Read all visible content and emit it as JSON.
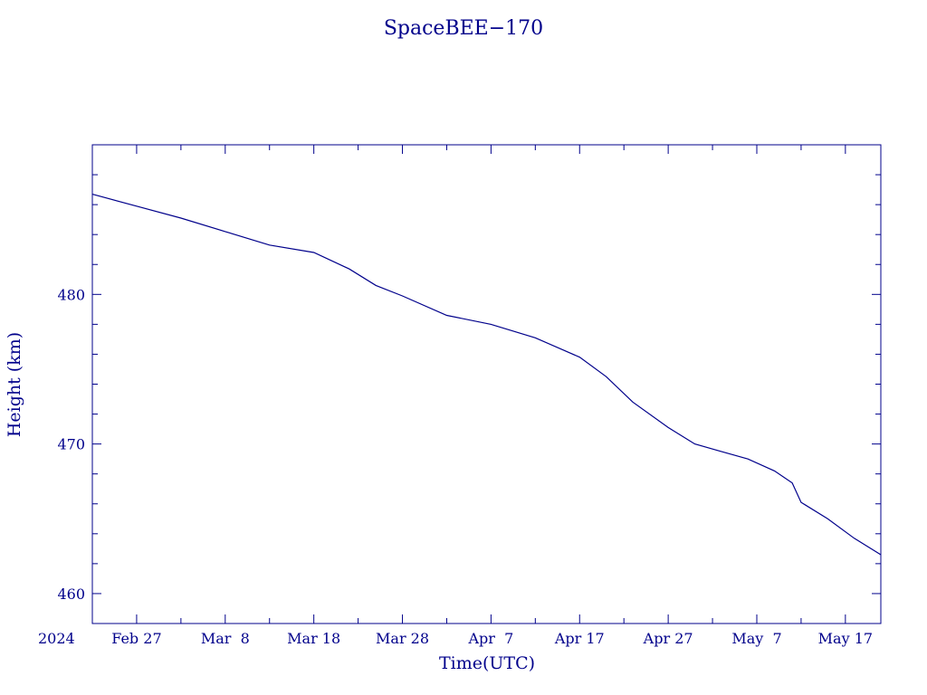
{
  "chart_data": {
    "type": "line",
    "title": "SpaceBEE−170",
    "xlabel": "Time(UTC)",
    "ylabel": "Height (km)",
    "x_start_label": "2024",
    "xlim": [
      "2024-02-22",
      "2024-05-21"
    ],
    "ylim": [
      458,
      490
    ],
    "x_tick_labels": [
      {
        "date": "2024-02-27",
        "label": "Feb 27"
      },
      {
        "date": "2024-03-08",
        "label": "Mar  8"
      },
      {
        "date": "2024-03-18",
        "label": "Mar 18"
      },
      {
        "date": "2024-03-28",
        "label": "Mar 28"
      },
      {
        "date": "2024-04-07",
        "label": "Apr  7"
      },
      {
        "date": "2024-04-17",
        "label": "Apr 17"
      },
      {
        "date": "2024-04-27",
        "label": "Apr 27"
      },
      {
        "date": "2024-05-07",
        "label": "May  7"
      },
      {
        "date": "2024-05-17",
        "label": "May 17"
      }
    ],
    "y_ticks": [
      460,
      470,
      480
    ],
    "grid": false,
    "series": [
      {
        "x": [
          "2024-02-22",
          "2024-02-27",
          "2024-03-03",
          "2024-03-08",
          "2024-03-13",
          "2024-03-18",
          "2024-03-22",
          "2024-03-25",
          "2024-03-28",
          "2024-04-02",
          "2024-04-07",
          "2024-04-12",
          "2024-04-17",
          "2024-04-20",
          "2024-04-23",
          "2024-04-27",
          "2024-04-30",
          "2024-05-03",
          "2024-05-06",
          "2024-05-09",
          "2024-05-11",
          "2024-05-12",
          "2024-05-15",
          "2024-05-18",
          "2024-05-21"
        ],
        "y": [
          486.7,
          485.9,
          485.1,
          484.2,
          483.3,
          482.8,
          481.7,
          480.6,
          479.9,
          478.6,
          478.0,
          477.1,
          475.8,
          474.5,
          472.8,
          471.1,
          470.0,
          469.5,
          469.0,
          468.2,
          467.4,
          466.1,
          465.0,
          463.7,
          462.6
        ]
      }
    ]
  }
}
